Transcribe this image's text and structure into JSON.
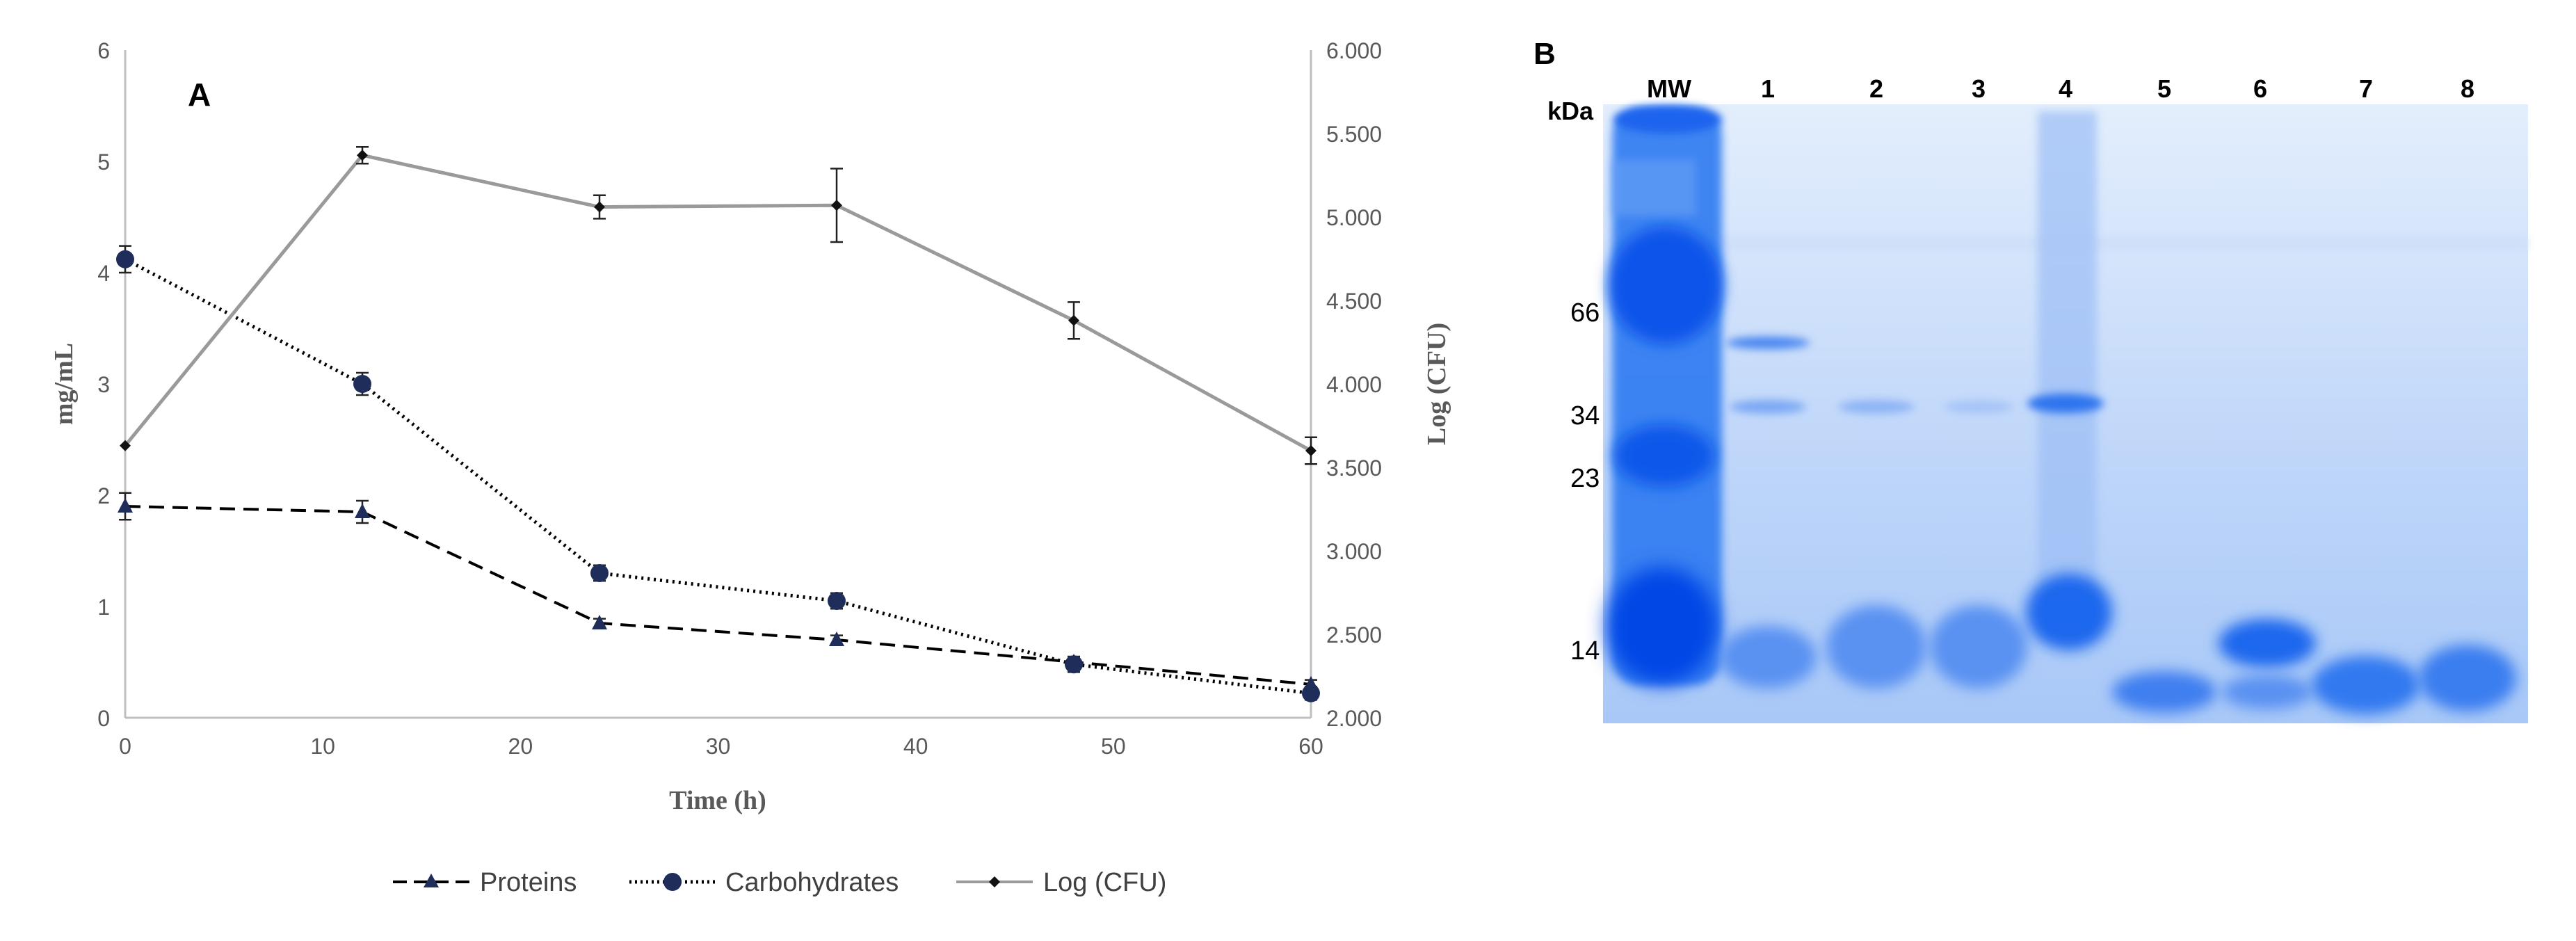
{
  "chart_data": [
    {
      "panel": "A",
      "type": "line",
      "panel_label": "A",
      "xlabel": "Time (h)",
      "ylabel": "mg/mL",
      "y2label": "Log (CFU)",
      "x_ticks": [
        "0",
        "10",
        "20",
        "30",
        "40",
        "50",
        "60"
      ],
      "y_ticks": [
        "0",
        "1",
        "2",
        "3",
        "4",
        "5",
        "6"
      ],
      "y2_ticks": [
        "2.000",
        "2.500",
        "3.000",
        "3.500",
        "4.000",
        "4.500",
        "5.000",
        "5.500",
        "6.000"
      ],
      "xlim": [
        0,
        60
      ],
      "ylim": [
        0,
        6
      ],
      "y2lim": [
        2.0,
        6.0
      ],
      "x": [
        0,
        12,
        24,
        36,
        48,
        60
      ],
      "series": [
        {
          "name": "Proteins",
          "axis": "left",
          "marker": "triangle",
          "line": "dashed",
          "color": "#1f2d5a",
          "values": [
            1.9,
            1.85,
            0.85,
            0.7,
            0.5,
            0.3
          ],
          "errors": [
            0.12,
            0.1,
            0.04,
            0.04,
            0.04,
            0.04
          ]
        },
        {
          "name": "Carbohydrates",
          "axis": "left",
          "marker": "circle",
          "line": "dotted",
          "color": "#1f2d5a",
          "values": [
            4.12,
            3.0,
            1.3,
            1.05,
            0.48,
            0.22
          ],
          "errors": [
            0.12,
            0.1,
            0.07,
            0.07,
            0.07,
            0.06
          ]
        },
        {
          "name": "Log (CFU)",
          "axis": "right",
          "marker": "diamond",
          "line": "solid",
          "color": "#9a9a9a",
          "values": [
            3.63,
            5.37,
            5.06,
            5.07,
            4.38,
            3.6
          ],
          "errors": [
            0.0,
            0.05,
            0.07,
            0.22,
            0.11,
            0.08
          ]
        }
      ],
      "legend_position": "bottom-center"
    },
    {
      "panel": "B",
      "type": "gel",
      "panel_label": "B",
      "unit_label": "kDa",
      "lanes": [
        "MW",
        "1",
        "2",
        "3",
        "4",
        "5",
        "6",
        "7",
        "8"
      ],
      "markers": [
        "66",
        "34",
        "23",
        "14"
      ],
      "colors": {
        "gel": "#c7dcfa",
        "band": "#1e6cf0",
        "band_dark": "#0a55e8"
      }
    }
  ]
}
